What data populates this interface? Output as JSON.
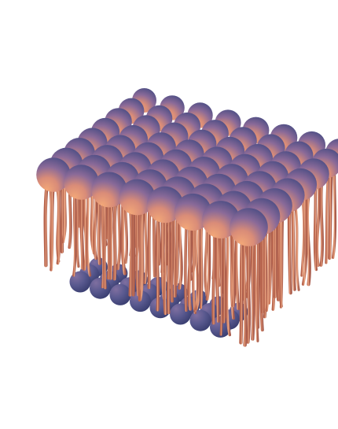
{
  "figure": {
    "subject": "lipid-bilayer-patch",
    "colors": {
      "head_light": "#e89a72",
      "head_mid": "#9a6e9a",
      "head_dark": "#4a4f86",
      "tail_light": "#f0a883",
      "tail_dark": "#b8664f",
      "background": "#ffffff"
    },
    "upper_leaflet": {
      "rows": 8,
      "cols": 8
    },
    "lower_leaflet": {
      "rows": 3,
      "cols": 8
    }
  }
}
